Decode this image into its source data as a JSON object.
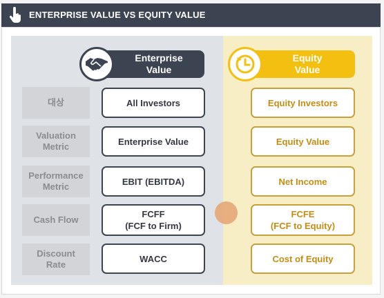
{
  "header": {
    "title": "Enterprise Value vs Equity Value",
    "icon": "pointer-hand-icon",
    "bg": "#3b4450"
  },
  "columns": {
    "enterprise": {
      "label": "Enterprise\nValue",
      "icon": "handshake-icon",
      "color": "#3b4450"
    },
    "equity": {
      "label": "Equity\nValue",
      "icon": "clock-refresh-icon",
      "color": "#f3bf10"
    }
  },
  "rows": [
    {
      "label": "대상",
      "enterprise": "All Investors",
      "equity": "Equity Investors"
    },
    {
      "label": "Valuation\nMetric",
      "enterprise": "Enterprise Value",
      "equity": "Equity Value"
    },
    {
      "label": "Performance\nMetric",
      "enterprise": "EBIT (EBITDA)",
      "equity": "Net Income"
    },
    {
      "label": "Cash Flow",
      "enterprise": "FCFF\n(FCF to Firm)",
      "equity": "FCFE\n(FCF to Equity)"
    },
    {
      "label": "Discount\nRate",
      "enterprise": "WACC",
      "equity": "Cost of Equity"
    }
  ]
}
